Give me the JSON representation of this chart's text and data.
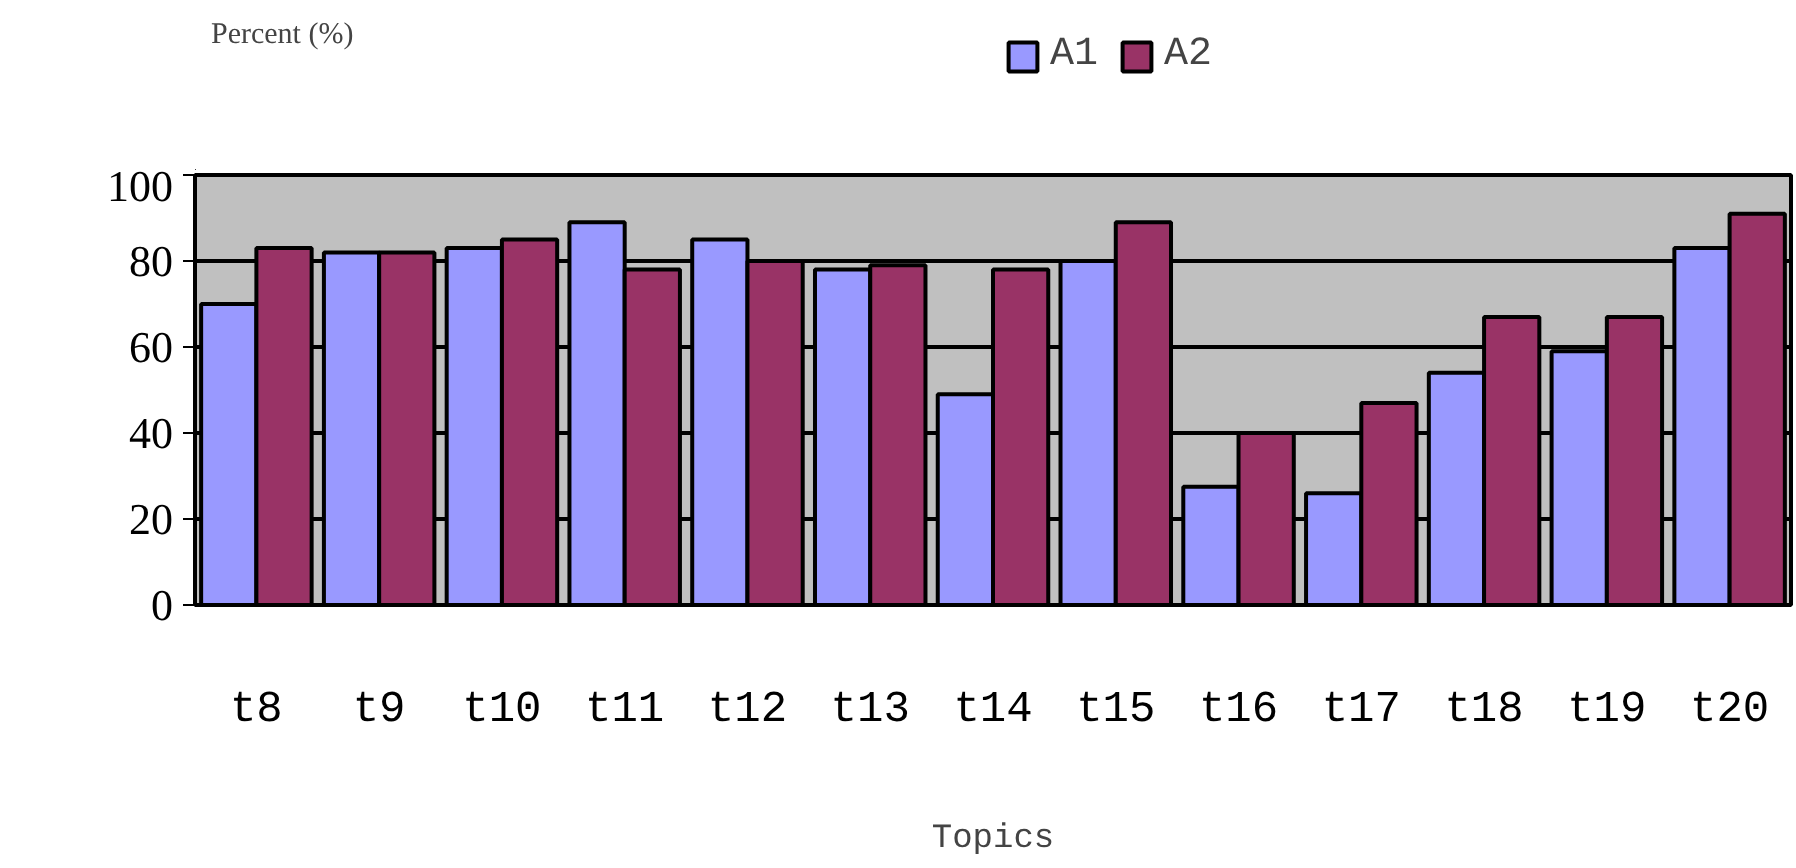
{
  "chart_data": {
    "type": "bar",
    "ylabel": "Percent (%)",
    "xlabel": "Topics",
    "categories": [
      "t8",
      "t9",
      "t10",
      "t11",
      "t12",
      "t13",
      "t14",
      "t15",
      "t16",
      "t17",
      "t18",
      "t19",
      "t20"
    ],
    "series": [
      {
        "name": "A1",
        "color": "#9999ff",
        "values": [
          70,
          82,
          83,
          89,
          85,
          78,
          49,
          80,
          27.5,
          26,
          54,
          59,
          83
        ]
      },
      {
        "name": "A2",
        "color": "#993366",
        "values": [
          83,
          82,
          85,
          78,
          80,
          79,
          78,
          89,
          40,
          47,
          67,
          67,
          91
        ]
      }
    ],
    "ylim": [
      0,
      100
    ],
    "yticks": [
      0,
      20,
      40,
      60,
      80,
      100
    ],
    "grid": "y",
    "legend": "top"
  }
}
